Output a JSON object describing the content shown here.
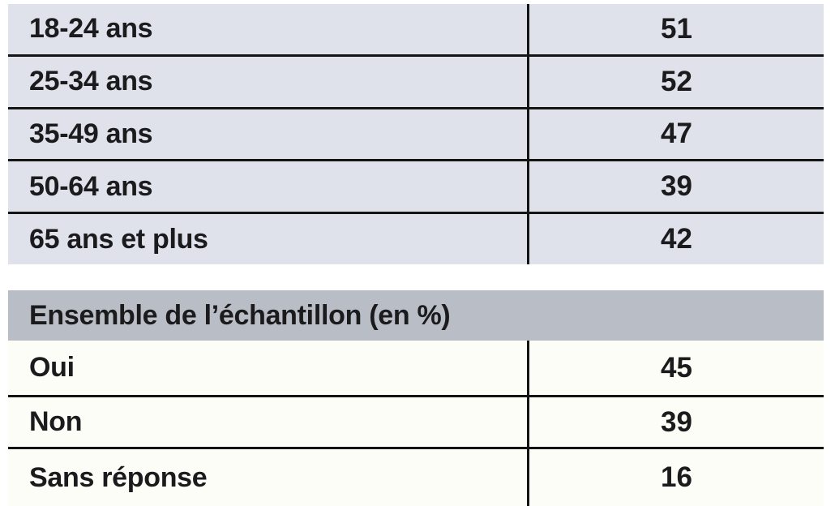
{
  "colors": {
    "age_row_bg": "#dfe1eb",
    "sample_header_bg": "#b9bdc6",
    "sample_row_bg": "#fdfdf8",
    "rule_line": "#141414",
    "text": "#1b1b1d",
    "page_bg": "#ffffff"
  },
  "age_table": {
    "rows": [
      {
        "label": "18-24 ans",
        "value": "51"
      },
      {
        "label": "25-34 ans",
        "value": "52"
      },
      {
        "label": "35-49 ans",
        "value": "47"
      },
      {
        "label": "50-64 ans",
        "value": "39"
      },
      {
        "label": "65 ans et plus",
        "value": "42"
      }
    ]
  },
  "sample_table": {
    "header": "Ensemble de l’échantillon (en %)",
    "rows": [
      {
        "label": "Oui",
        "value": "45"
      },
      {
        "label": "Non",
        "value": "39"
      },
      {
        "label": "Sans réponse",
        "value": "16"
      }
    ]
  },
  "chart_data": {
    "type": "table",
    "title": "Ensemble de l’échantillon (en %)",
    "sections": [
      {
        "name": "tranches-age",
        "categories": [
          "18-24 ans",
          "25-34 ans",
          "35-49 ans",
          "50-64 ans",
          "65 ans et plus"
        ],
        "values": [
          51,
          52,
          47,
          39,
          42
        ]
      },
      {
        "name": "ensemble-echantillon",
        "categories": [
          "Oui",
          "Non",
          "Sans réponse"
        ],
        "values": [
          45,
          39,
          16
        ]
      }
    ]
  }
}
